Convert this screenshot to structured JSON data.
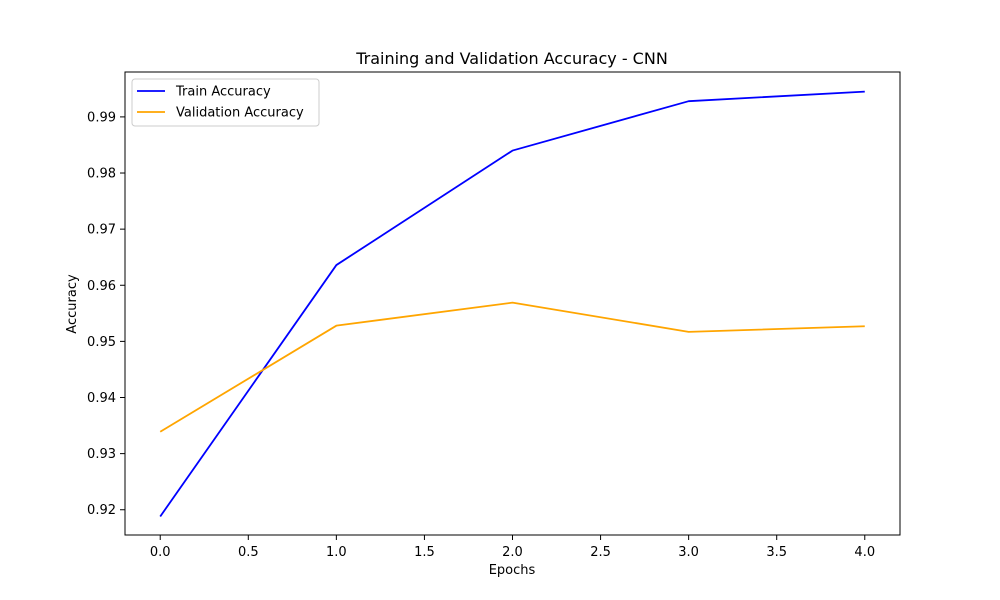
{
  "chart_data": {
    "type": "line",
    "title": "Training and Validation Accuracy - CNN",
    "xlabel": "Epochs",
    "ylabel": "Accuracy",
    "x": [
      0,
      1,
      2,
      3,
      4
    ],
    "xlim": [
      -0.2,
      4.2
    ],
    "ylim": [
      0.9155,
      0.998
    ],
    "xticks": [
      0.0,
      0.5,
      1.0,
      1.5,
      2.0,
      2.5,
      3.0,
      3.5,
      4.0
    ],
    "xtick_labels": [
      "0.0",
      "0.5",
      "1.0",
      "1.5",
      "2.0",
      "2.5",
      "3.0",
      "3.5",
      "4.0"
    ],
    "yticks": [
      0.92,
      0.93,
      0.94,
      0.95,
      0.96,
      0.97,
      0.98,
      0.99
    ],
    "ytick_labels": [
      "0.92",
      "0.93",
      "0.94",
      "0.95",
      "0.96",
      "0.97",
      "0.98",
      "0.99"
    ],
    "grid": false,
    "legend_position": "top-left",
    "series": [
      {
        "name": "Train Accuracy",
        "color": "#0000ff",
        "values": [
          0.9188,
          0.9636,
          0.984,
          0.9928,
          0.9945
        ]
      },
      {
        "name": "Validation Accuracy",
        "color": "#ffa500",
        "values": [
          0.9339,
          0.9528,
          0.9569,
          0.9517,
          0.9527
        ]
      }
    ]
  }
}
